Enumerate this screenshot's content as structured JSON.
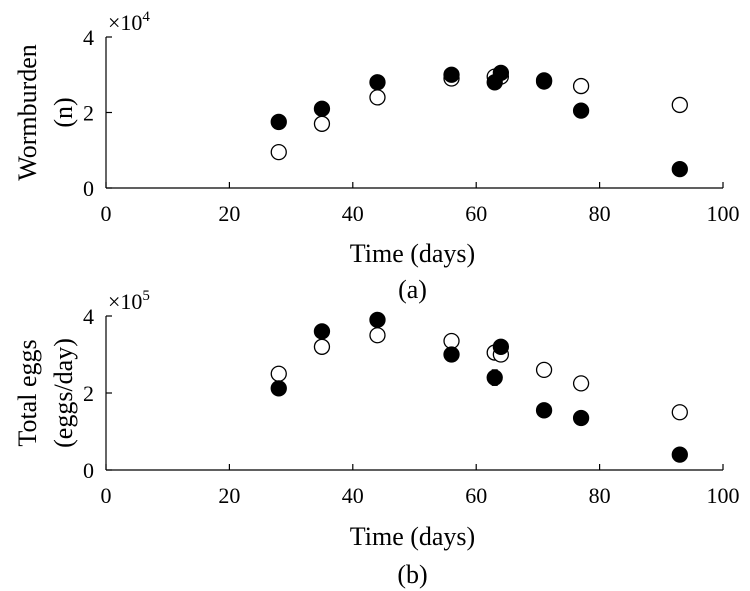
{
  "chart_data": [
    {
      "type": "scatter",
      "caption": "(a)",
      "xlabel": "Time (days)",
      "ylabel_lines": [
        "Wormburden",
        "(n)"
      ],
      "y_multiplier": {
        "base": "×10",
        "exp": "4"
      },
      "xlim": [
        0,
        100
      ],
      "ylim": [
        0,
        4
      ],
      "xticks": [
        0,
        20,
        40,
        60,
        80,
        100
      ],
      "yticks": [
        0,
        2,
        4
      ],
      "series": [
        {
          "marker": "open-circle",
          "points": [
            {
              "x": 28,
              "y": 0.95
            },
            {
              "x": 35,
              "y": 1.7
            },
            {
              "x": 44,
              "y": 2.4
            },
            {
              "x": 56,
              "y": 2.9
            },
            {
              "x": 63,
              "y": 2.95
            },
            {
              "x": 64,
              "y": 2.95
            },
            {
              "x": 71,
              "y": 2.85
            },
            {
              "x": 77,
              "y": 2.7
            },
            {
              "x": 93,
              "y": 2.2
            }
          ]
        },
        {
          "marker": "filled-circle",
          "points": [
            {
              "x": 28,
              "y": 1.75
            },
            {
              "x": 35,
              "y": 2.1
            },
            {
              "x": 44,
              "y": 2.8
            },
            {
              "x": 56,
              "y": 3.0
            },
            {
              "x": 63,
              "y": 2.8,
              "err": 0.15
            },
            {
              "x": 64,
              "y": 3.05
            },
            {
              "x": 71,
              "y": 2.82
            },
            {
              "x": 77,
              "y": 2.05
            },
            {
              "x": 93,
              "y": 0.5
            }
          ]
        }
      ]
    },
    {
      "type": "scatter",
      "caption": "(b)",
      "xlabel": "Time (days)",
      "ylabel_lines": [
        "Total eggs",
        "(eggs/day)"
      ],
      "y_multiplier": {
        "base": "×10",
        "exp": "5"
      },
      "xlim": [
        0,
        100
      ],
      "ylim": [
        0,
        4
      ],
      "xticks": [
        0,
        20,
        40,
        60,
        80,
        100
      ],
      "yticks": [
        0,
        2,
        4
      ],
      "series": [
        {
          "marker": "open-circle",
          "points": [
            {
              "x": 28,
              "y": 2.5
            },
            {
              "x": 35,
              "y": 3.2
            },
            {
              "x": 44,
              "y": 3.5
            },
            {
              "x": 56,
              "y": 3.35
            },
            {
              "x": 63,
              "y": 3.05
            },
            {
              "x": 64,
              "y": 3.0
            },
            {
              "x": 71,
              "y": 2.6
            },
            {
              "x": 77,
              "y": 2.25
            },
            {
              "x": 93,
              "y": 1.5
            }
          ]
        },
        {
          "marker": "filled-circle",
          "points": [
            {
              "x": 28,
              "y": 2.12
            },
            {
              "x": 35,
              "y": 3.6
            },
            {
              "x": 44,
              "y": 3.9
            },
            {
              "x": 56,
              "y": 3.0
            },
            {
              "x": 63,
              "y": 2.4,
              "err": 0.2
            },
            {
              "x": 64,
              "y": 3.2
            },
            {
              "x": 71,
              "y": 1.55
            },
            {
              "x": 77,
              "y": 1.35
            },
            {
              "x": 93,
              "y": 0.4
            }
          ]
        }
      ]
    }
  ]
}
